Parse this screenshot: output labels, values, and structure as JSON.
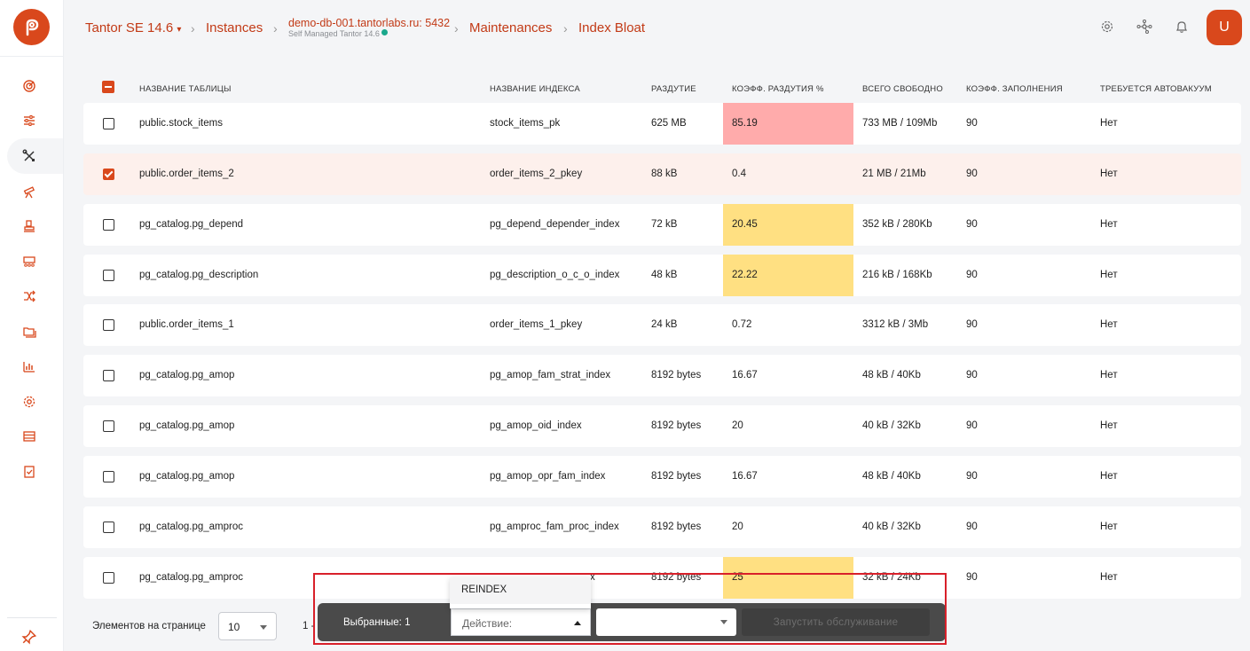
{
  "breadcrumb": {
    "product": "Tantor SE 14.6",
    "instances": "Instances",
    "instance_name": "demo-db-001.tantorlabs.ru: 5432",
    "instance_sub": "Self Managed Tantor 14.6",
    "maintenances": "Maintenances",
    "current": "Index Bloat"
  },
  "user": {
    "avatar_letter": "U"
  },
  "table": {
    "headers": {
      "table_name": "НАЗВАНИЕ ТАБЛИЦЫ",
      "index_name": "НАЗВАНИЕ ИНДЕКСА",
      "bloat": "РАЗДУТИЕ",
      "bloat_ratio": "КОЭФФ. РАЗДУТИЯ %",
      "total_free": "ВСЕГО СВОБОДНО",
      "fill_factor": "КОЭФФ. ЗАПОЛНЕНИЯ",
      "autovacuum": "ТРЕБУЕТСЯ АВТОВАКУУМ"
    },
    "rows": [
      {
        "table": "public.stock_items",
        "index": "stock_items_pk",
        "bloat": "625 MB",
        "ratio": "85.19",
        "free": "733 MB / 109Mb",
        "fill": "90",
        "autovac": "Нет",
        "checked": false,
        "level": "red"
      },
      {
        "table": "public.order_items_2",
        "index": "order_items_2_pkey",
        "bloat": "88 kB",
        "ratio": "0.4",
        "free": "21 MB / 21Mb",
        "fill": "90",
        "autovac": "Нет",
        "checked": true,
        "level": "none"
      },
      {
        "table": "pg_catalog.pg_depend",
        "index": "pg_depend_depender_index",
        "bloat": "72 kB",
        "ratio": "20.45",
        "free": "352 kB / 280Kb",
        "fill": "90",
        "autovac": "Нет",
        "checked": false,
        "level": "yellow"
      },
      {
        "table": "pg_catalog.pg_description",
        "index": "pg_description_o_c_o_index",
        "bloat": "48 kB",
        "ratio": "22.22",
        "free": "216 kB / 168Kb",
        "fill": "90",
        "autovac": "Нет",
        "checked": false,
        "level": "yellow"
      },
      {
        "table": "public.order_items_1",
        "index": "order_items_1_pkey",
        "bloat": "24 kB",
        "ratio": "0.72",
        "free": "3312 kB / 3Mb",
        "fill": "90",
        "autovac": "Нет",
        "checked": false,
        "level": "none"
      },
      {
        "table": "pg_catalog.pg_amop",
        "index": "pg_amop_fam_strat_index",
        "bloat": "8192 bytes",
        "ratio": "16.67",
        "free": "48 kB / 40Kb",
        "fill": "90",
        "autovac": "Нет",
        "checked": false,
        "level": "none"
      },
      {
        "table": "pg_catalog.pg_amop",
        "index": "pg_amop_oid_index",
        "bloat": "8192 bytes",
        "ratio": "20",
        "free": "40 kB / 32Kb",
        "fill": "90",
        "autovac": "Нет",
        "checked": false,
        "level": "none"
      },
      {
        "table": "pg_catalog.pg_amop",
        "index": "pg_amop_opr_fam_index",
        "bloat": "8192 bytes",
        "ratio": "16.67",
        "free": "48 kB / 40Kb",
        "fill": "90",
        "autovac": "Нет",
        "checked": false,
        "level": "none"
      },
      {
        "table": "pg_catalog.pg_amproc",
        "index": "pg_amproc_fam_proc_index",
        "bloat": "8192 bytes",
        "ratio": "20",
        "free": "40 kB / 32Kb",
        "fill": "90",
        "autovac": "Нет",
        "checked": false,
        "level": "none"
      },
      {
        "table": "pg_catalog.pg_amproc",
        "index": "x",
        "bloat": "8192 bytes",
        "ratio": "25",
        "free": "32 kB / 24Kb",
        "fill": "90",
        "autovac": "Нет",
        "checked": false,
        "level": "yellow"
      }
    ]
  },
  "colors": {
    "accent": "#d9481c",
    "red_level": "#ffabab",
    "yellow_level": "#ffe082",
    "selected_row": "#fdf0ec"
  },
  "pagination": {
    "per_page_label": "Элементов на странице",
    "per_page_value": "10",
    "range": "1 -"
  },
  "action_bar": {
    "selected_label": "Выбранные: 1",
    "action_placeholder": "Действие:",
    "dropdown_option": "REINDEX",
    "run_button": "Запустить обслуживание"
  },
  "icons": [
    "dashboard-icon",
    "settings-sliders-icon",
    "tools-icon",
    "telescope-icon",
    "stamp-icon",
    "cluster-icon",
    "shuffle-icon",
    "folders-icon",
    "bar-chart-icon",
    "gear-icon",
    "storage-icon",
    "checklist-icon",
    "pin-icon",
    "settings-icon",
    "network-icon",
    "bell-icon"
  ]
}
